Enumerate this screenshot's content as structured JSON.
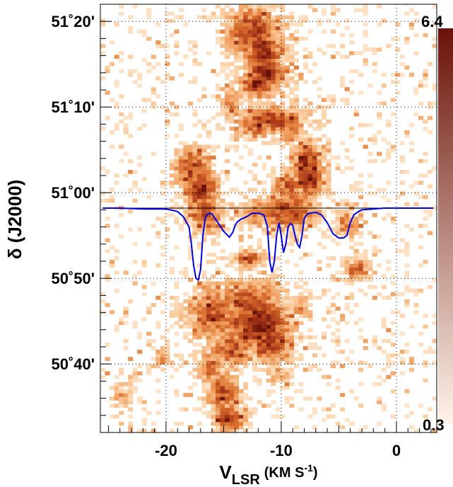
{
  "chart_data": {
    "type": "heatmap",
    "title": "",
    "xlabel": {
      "main": "V",
      "sub": "LSR",
      "unit": "(KM S",
      "exp": "-1",
      "close": ")"
    },
    "ylabel": "δ (J2000)",
    "xlim": [
      -25.7,
      3.5
    ],
    "ylim_arcmin": [
      -28,
      22
    ],
    "x_ticks": [
      {
        "value": -20,
        "label": "-20"
      },
      {
        "value": -10,
        "label": "-10"
      },
      {
        "value": 0,
        "label": "0"
      }
    ],
    "y_ticks": [
      {
        "value": 20,
        "label": "51˚20'"
      },
      {
        "value": 10,
        "label": "51˚10'"
      },
      {
        "value": 0,
        "label": "51˚00'"
      },
      {
        "value": -10,
        "label": "50˚50'"
      },
      {
        "value": -20,
        "label": "50˚40'"
      }
    ],
    "grid": true,
    "colorbar": {
      "min": 0.3,
      "max": 6.4,
      "min_label": "0.3",
      "max_label": "6.4",
      "colors": [
        "#fff4ea",
        "#fbd2a8",
        "#f0a060",
        "#d4682a",
        "#a8381a",
        "#6a1208"
      ]
    },
    "absorption_line": {
      "color": "#0000dd",
      "baseline_arcmin": -1.8,
      "x": [
        -25.5,
        -24,
        -22,
        -20,
        -19,
        -18.5,
        -18,
        -17.8,
        -17.6,
        -17.4,
        -17.2,
        -17,
        -16.8,
        -16.6,
        -16.4,
        -16.2,
        -16,
        -15.5,
        -15,
        -14.5,
        -14.2,
        -14,
        -13.8,
        -13.5,
        -13,
        -12.5,
        -12,
        -11.5,
        -11.2,
        -11,
        -10.8,
        -10.6,
        -10.4,
        -10.2,
        -10,
        -9.8,
        -9.6,
        -9.4,
        -9.2,
        -9,
        -8.8,
        -8.6,
        -8.4,
        -8.2,
        -8,
        -7.8,
        -7.6,
        -7,
        -6.5,
        -6,
        -5.5,
        -5,
        -4.6,
        -4.3,
        -4,
        -3.7,
        -3.4,
        -3,
        -2,
        -1,
        0,
        1,
        2,
        3.2
      ],
      "y": [
        -1.8,
        -1.8,
        -1.9,
        -1.9,
        -2.2,
        -2.8,
        -4,
        -6,
        -8.5,
        -10,
        -10.2,
        -9,
        -5,
        -3,
        -2.5,
        -2.4,
        -2.5,
        -3.5,
        -4.5,
        -5.2,
        -4.6,
        -3.8,
        -3.4,
        -3.1,
        -2.8,
        -2.4,
        -2.4,
        -2.6,
        -4,
        -8,
        -9.3,
        -8,
        -5,
        -3.5,
        -5,
        -7,
        -6,
        -4,
        -3.6,
        -3.8,
        -5,
        -6,
        -6.4,
        -5,
        -3,
        -2.6,
        -2.4,
        -2.3,
        -2.6,
        -3.5,
        -4.8,
        -5.3,
        -5.3,
        -5,
        -3.5,
        -2.6,
        -2.3,
        -2,
        -1.9,
        -1.8,
        -1.8,
        -1.8,
        -1.8,
        -1.8
      ]
    },
    "emission_blobs": [
      {
        "x": -13.3,
        "y": 19.5,
        "w": 1.4,
        "h": 2.2,
        "v": 4.2
      },
      {
        "x": -12.6,
        "y": 18.5,
        "w": 2.4,
        "h": 3.2,
        "v": 5.0
      },
      {
        "x": -11.8,
        "y": 16.2,
        "w": 1.8,
        "h": 3.0,
        "v": 5.4
      },
      {
        "x": -11.5,
        "y": 14.0,
        "w": 1.8,
        "h": 2.5,
        "v": 5.6
      },
      {
        "x": -12.2,
        "y": 12.6,
        "w": 1.6,
        "h": 1.6,
        "v": 5.8
      },
      {
        "x": -11.0,
        "y": 8.3,
        "w": 3.0,
        "h": 1.6,
        "v": 5.0
      },
      {
        "x": -12.3,
        "y": 7.6,
        "w": 1.8,
        "h": 1.4,
        "v": 4.4
      },
      {
        "x": -9.4,
        "y": 6.9,
        "w": 1.2,
        "h": 1.6,
        "v": 4.0
      },
      {
        "x": -14.5,
        "y": 10.0,
        "w": 1.0,
        "h": 2.2,
        "v": 3.0
      },
      {
        "x": -18.0,
        "y": 2.7,
        "w": 1.5,
        "h": 2.4,
        "v": 4.8
      },
      {
        "x": -17.2,
        "y": 0.3,
        "w": 1.6,
        "h": 2.8,
        "v": 5.2
      },
      {
        "x": -16.8,
        "y": -2.5,
        "w": 1.5,
        "h": 2.6,
        "v": 4.6
      },
      {
        "x": -8.0,
        "y": 2.8,
        "w": 1.3,
        "h": 3.2,
        "v": 5.4
      },
      {
        "x": -7.8,
        "y": 1.3,
        "w": 1.3,
        "h": 1.8,
        "v": 6.0
      },
      {
        "x": -9.5,
        "y": 0.3,
        "w": 1.5,
        "h": 2.4,
        "v": 4.2
      },
      {
        "x": -9.6,
        "y": -2.2,
        "w": 2.6,
        "h": 2.2,
        "v": 5.0
      },
      {
        "x": -12.5,
        "y": -2.6,
        "w": 1.6,
        "h": 1.8,
        "v": 3.6
      },
      {
        "x": -13.0,
        "y": -8.0,
        "w": 1.4,
        "h": 1.2,
        "v": 4.2
      },
      {
        "x": -4.5,
        "y": -3.8,
        "w": 1.0,
        "h": 1.6,
        "v": 3.6
      },
      {
        "x": -3.6,
        "y": -9.2,
        "w": 1.0,
        "h": 1.2,
        "v": 4.6
      },
      {
        "x": -16.0,
        "y": -14.5,
        "w": 2.4,
        "h": 3.5,
        "v": 4.2
      },
      {
        "x": -13.0,
        "y": -13.0,
        "w": 3.0,
        "h": 2.8,
        "v": 4.6
      },
      {
        "x": -12.2,
        "y": -15.5,
        "w": 3.0,
        "h": 3.2,
        "v": 5.8
      },
      {
        "x": -11.2,
        "y": -17.8,
        "w": 2.0,
        "h": 2.4,
        "v": 5.2
      },
      {
        "x": -14.5,
        "y": -18.2,
        "w": 2.0,
        "h": 2.6,
        "v": 4.4
      },
      {
        "x": -16.3,
        "y": -20.5,
        "w": 1.2,
        "h": 2.0,
        "v": 4.0
      },
      {
        "x": -15.2,
        "y": -23.5,
        "w": 1.4,
        "h": 2.6,
        "v": 4.6
      },
      {
        "x": -14.8,
        "y": -26.5,
        "w": 1.4,
        "h": 1.8,
        "v": 5.2
      },
      {
        "x": -20.5,
        "y": -19.5,
        "w": 0.9,
        "h": 1.2,
        "v": 3.0
      },
      {
        "x": -24.0,
        "y": -24.0,
        "w": 0.8,
        "h": 2.0,
        "v": 2.6
      },
      {
        "x": -10.5,
        "y": -21.5,
        "w": 1.0,
        "h": 1.4,
        "v": 3.0
      },
      {
        "x": -8.5,
        "y": -13.5,
        "w": 0.9,
        "h": 1.6,
        "v": 3.0
      }
    ]
  }
}
